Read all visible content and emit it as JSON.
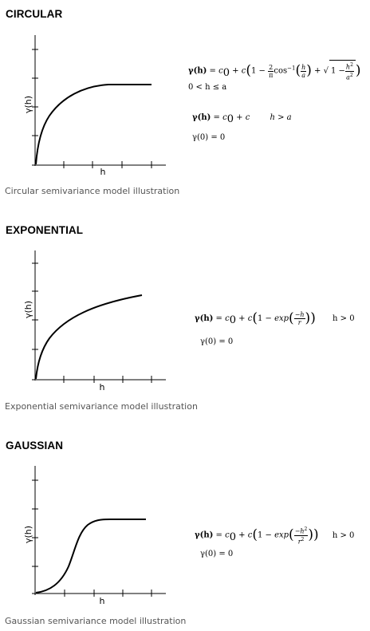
{
  "circular": {
    "title": "CIRCULAR",
    "y_label": "γ(h)",
    "x_label": "h",
    "caption": "Circular semivariance model illustration",
    "formula": {
      "lhs": "γ(h)",
      "eq": " = ",
      "c0_c": "c",
      "c0_sub": "0",
      "plus_c": " + c",
      "one_minus": "1 −",
      "frac_num": "2",
      "frac_den": "π",
      "cos": "cos",
      "cos_sup": "−1",
      "h_over_a_num": "h",
      "h_over_a_den": "a",
      "plus": " + ",
      "sqrt_one_minus": "1 −",
      "h2_num": "h",
      "h2_num_sup": "2",
      "a2_den": "a",
      "a2_den_sup": "2",
      "domain": "0 < h ≤ a",
      "line2_lhs": "γ(h)",
      "line2_rhs": " = c",
      "line2_sub": "0",
      "line2_plus": " + c",
      "line2_cond": "h > a",
      "line3": "γ(0)  =  0"
    }
  },
  "exponential": {
    "title": "EXPONENTIAL",
    "y_label": "γ(h)",
    "x_label": "h",
    "caption": "Exponential semivariance model illustration",
    "formula": {
      "lhs": "γ(h)",
      "eq": " = ",
      "c0_c": "c",
      "c0_sub": "0",
      "plus_c": " + c",
      "one_minus": "1 − ",
      "exp": "exp",
      "frac_num": "−h",
      "frac_den": "r",
      "cond": "h > 0",
      "line2": "γ(0)  =  0"
    }
  },
  "gaussian": {
    "title": "GAUSSIAN",
    "y_label": "γ(h)",
    "x_label": "h",
    "caption": "Gaussian semivariance model illustration",
    "formula": {
      "lhs": "γ(h)",
      "eq": " = ",
      "c0_c": "c",
      "c0_sub": "0",
      "plus_c": " + c",
      "one_minus": "1 − ",
      "exp": "exp",
      "frac_num": "−h",
      "frac_num_sup": "2",
      "frac_den": "r",
      "frac_den_sup": "2",
      "cond": "h > 0",
      "line2": "γ(0)  =  0"
    }
  }
}
